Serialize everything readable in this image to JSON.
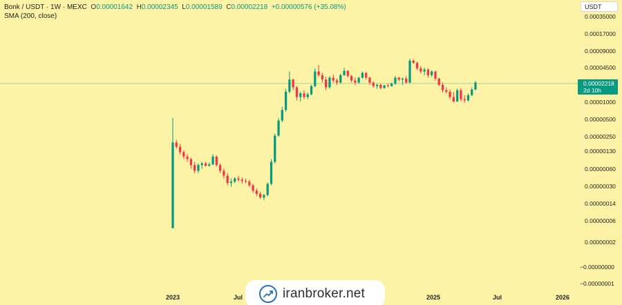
{
  "header": {
    "symbol": "Bonk / USDT · 1W · MEXC",
    "open_key": "O",
    "open_val": "0.00001642",
    "high_key": "H",
    "high_val": "0.00002345",
    "low_key": "L",
    "low_val": "0.00001589",
    "close_key": "C",
    "close_val": "0.00002218",
    "change": "+0.00000576 (+35.08%)",
    "indicator": "SMA (200, close)"
  },
  "currency": "USDT",
  "price_tag": {
    "price": "0.00002218",
    "countdown": "2d 10h"
  },
  "watermark": {
    "text": "iranbroker.net",
    "icon": "trend-chart-icon"
  },
  "colors": {
    "background": "#fdf3a6",
    "up": "#089981",
    "down": "#f23645",
    "price_line": "#089981"
  },
  "chart_data": {
    "type": "candlestick",
    "title": "Bonk / USDT · 1W · MEXC",
    "y_scale": "log",
    "y_ticks": [
      "0.00035000",
      "0.00017000",
      "0.00009000",
      "0.00004500",
      "0.00001000",
      "0.00000500",
      "0.00000250",
      "0.00000130",
      "0.00000060",
      "0.00000030",
      "0.00000014",
      "0.00000006",
      "0.00000002",
      "−0.00000000",
      "−0.00000001"
    ],
    "x_ticks": [
      "2023",
      "Jul",
      "2025",
      "Jul",
      "2026"
    ],
    "last_price": 2.218e-05,
    "candles": [
      {
        "o": 5e-08,
        "h": 5e-06,
        "l": 5e-08,
        "c": 1.8e-06
      },
      {
        "o": 1.8e-06,
        "h": 2e-06,
        "l": 1.4e-06,
        "c": 1.5e-06
      },
      {
        "o": 1.5e-06,
        "h": 1.7e-06,
        "l": 1.1e-06,
        "c": 1.2e-06
      },
      {
        "o": 1.2e-06,
        "h": 1.3e-06,
        "l": 9e-07,
        "c": 1e-06
      },
      {
        "o": 1e-06,
        "h": 1.1e-06,
        "l": 8e-07,
        "c": 9e-07
      },
      {
        "o": 9e-07,
        "h": 9.5e-07,
        "l": 6e-07,
        "c": 7e-07
      },
      {
        "o": 7e-07,
        "h": 8e-07,
        "l": 5e-07,
        "c": 5.5e-07
      },
      {
        "o": 5.5e-07,
        "h": 7.5e-07,
        "l": 5e-07,
        "c": 7e-07
      },
      {
        "o": 7e-07,
        "h": 8e-07,
        "l": 6e-07,
        "c": 7.5e-07
      },
      {
        "o": 7.5e-07,
        "h": 8e-07,
        "l": 6.5e-07,
        "c": 6.8e-07
      },
      {
        "o": 6.8e-07,
        "h": 7.8e-07,
        "l": 6.5e-07,
        "c": 7.2e-07
      },
      {
        "o": 7.2e-07,
        "h": 1.1e-06,
        "l": 7e-07,
        "c": 1e-06
      },
      {
        "o": 1e-06,
        "h": 1.05e-06,
        "l": 6.5e-07,
        "c": 7e-07
      },
      {
        "o": 7e-07,
        "h": 7.5e-07,
        "l": 5e-07,
        "c": 5.5e-07
      },
      {
        "o": 5.5e-07,
        "h": 6e-07,
        "l": 4e-07,
        "c": 4.5e-07
      },
      {
        "o": 4.5e-07,
        "h": 5e-07,
        "l": 3e-07,
        "c": 3.3e-07
      },
      {
        "o": 3.3e-07,
        "h": 4e-07,
        "l": 2.8e-07,
        "c": 3.5e-07
      },
      {
        "o": 3.5e-07,
        "h": 4.2e-07,
        "l": 3.3e-07,
        "c": 4e-07
      },
      {
        "o": 4e-07,
        "h": 4.5e-07,
        "l": 3.5e-07,
        "c": 3.8e-07
      },
      {
        "o": 3.8e-07,
        "h": 4.2e-07,
        "l": 3.2e-07,
        "c": 3.6e-07
      },
      {
        "o": 3.6e-07,
        "h": 4e-07,
        "l": 3.3e-07,
        "c": 3.5e-07
      },
      {
        "o": 3.5e-07,
        "h": 3.8e-07,
        "l": 2.8e-07,
        "c": 3e-07
      },
      {
        "o": 3e-07,
        "h": 3.2e-07,
        "l": 2.2e-07,
        "c": 2.4e-07
      },
      {
        "o": 2.4e-07,
        "h": 2.6e-07,
        "l": 1.9e-07,
        "c": 2.1e-07
      },
      {
        "o": 2.1e-07,
        "h": 2.3e-07,
        "l": 1.7e-07,
        "c": 1.8e-07
      },
      {
        "o": 1.8e-07,
        "h": 2.1e-07,
        "l": 1.6e-07,
        "c": 2e-07
      },
      {
        "o": 2e-07,
        "h": 3.4e-07,
        "l": 1.9e-07,
        "c": 3.2e-07
      },
      {
        "o": 3.2e-07,
        "h": 9e-07,
        "l": 3e-07,
        "c": 8e-07
      },
      {
        "o": 8e-07,
        "h": 2.6e-06,
        "l": 7.5e-07,
        "c": 2.4e-06
      },
      {
        "o": 2.4e-06,
        "h": 5e-06,
        "l": 2.3e-06,
        "c": 4.5e-06
      },
      {
        "o": 4.5e-06,
        "h": 8e-06,
        "l": 4.2e-06,
        "c": 7e-06
      },
      {
        "o": 7e-06,
        "h": 1.7e-05,
        "l": 6.5e-06,
        "c": 1.5e-05
      },
      {
        "o": 1.5e-05,
        "h": 3.5e-05,
        "l": 1.4e-05,
        "c": 2.5e-05
      },
      {
        "o": 2.5e-05,
        "h": 2.6e-05,
        "l": 1.6e-05,
        "c": 1.8e-05
      },
      {
        "o": 1.8e-05,
        "h": 1.9e-05,
        "l": 1.05e-05,
        "c": 1.2e-05
      },
      {
        "o": 1.2e-05,
        "h": 1.5e-05,
        "l": 1e-05,
        "c": 1.4e-05
      },
      {
        "o": 1.4e-05,
        "h": 1.6e-05,
        "l": 1.1e-05,
        "c": 1.2e-05
      },
      {
        "o": 1.2e-05,
        "h": 1.45e-05,
        "l": 1.1e-05,
        "c": 1.35e-05
      },
      {
        "o": 1.35e-05,
        "h": 2e-05,
        "l": 1.3e-05,
        "c": 1.9e-05
      },
      {
        "o": 1.9e-05,
        "h": 4e-05,
        "l": 1.8e-05,
        "c": 3.5e-05
      },
      {
        "o": 3.5e-05,
        "h": 4.6e-05,
        "l": 2.8e-05,
        "c": 3e-05
      },
      {
        "o": 3e-05,
        "h": 3.3e-05,
        "l": 2.2e-05,
        "c": 2.5e-05
      },
      {
        "o": 2.5e-05,
        "h": 2.8e-05,
        "l": 1.6e-05,
        "c": 1.8e-05
      },
      {
        "o": 1.8e-05,
        "h": 2.9e-05,
        "l": 1.7e-05,
        "c": 2.7e-05
      },
      {
        "o": 2.7e-05,
        "h": 3.1e-05,
        "l": 2.2e-05,
        "c": 2.4e-05
      },
      {
        "o": 2.4e-05,
        "h": 2.6e-05,
        "l": 2e-05,
        "c": 2.2e-05
      },
      {
        "o": 2.2e-05,
        "h": 3.2e-05,
        "l": 2.1e-05,
        "c": 3e-05
      },
      {
        "o": 3e-05,
        "h": 4.1e-05,
        "l": 2.9e-05,
        "c": 3.6e-05
      },
      {
        "o": 3.6e-05,
        "h": 3.7e-05,
        "l": 2.7e-05,
        "c": 2.9e-05
      },
      {
        "o": 2.9e-05,
        "h": 3e-05,
        "l": 2.2e-05,
        "c": 2.4e-05
      },
      {
        "o": 2.4e-05,
        "h": 2.7e-05,
        "l": 2e-05,
        "c": 2.2e-05
      },
      {
        "o": 2.2e-05,
        "h": 2.8e-05,
        "l": 2.1e-05,
        "c": 2.7e-05
      },
      {
        "o": 2.7e-05,
        "h": 3.5e-05,
        "l": 2.6e-05,
        "c": 3.3e-05
      },
      {
        "o": 3.3e-05,
        "h": 3.4e-05,
        "l": 2.5e-05,
        "c": 2.7e-05
      },
      {
        "o": 2.7e-05,
        "h": 2.8e-05,
        "l": 2e-05,
        "c": 2.2e-05
      },
      {
        "o": 2.2e-05,
        "h": 2.3e-05,
        "l": 1.8e-05,
        "c": 1.9e-05
      },
      {
        "o": 1.9e-05,
        "h": 2.1e-05,
        "l": 1.7e-05,
        "c": 2e-05
      },
      {
        "o": 2e-05,
        "h": 2.1e-05,
        "l": 1.65e-05,
        "c": 1.75e-05
      },
      {
        "o": 1.75e-05,
        "h": 2e-05,
        "l": 1.7e-05,
        "c": 1.95e-05
      },
      {
        "o": 1.95e-05,
        "h": 2.1e-05,
        "l": 1.8e-05,
        "c": 1.9e-05
      },
      {
        "o": 1.9e-05,
        "h": 2.2e-05,
        "l": 1.85e-05,
        "c": 2.1e-05
      },
      {
        "o": 2.1e-05,
        "h": 2.9e-05,
        "l": 2e-05,
        "c": 2.7e-05
      },
      {
        "o": 2.7e-05,
        "h": 2.8e-05,
        "l": 2.3e-05,
        "c": 2.5e-05
      },
      {
        "o": 2.5e-05,
        "h": 2.7e-05,
        "l": 2e-05,
        "c": 2.6e-05
      },
      {
        "o": 2.6e-05,
        "h": 2.9e-05,
        "l": 2.1e-05,
        "c": 2.2e-05
      },
      {
        "o": 2.2e-05,
        "h": 6e-05,
        "l": 2.15e-05,
        "c": 5.5e-05
      },
      {
        "o": 5.5e-05,
        "h": 5.8e-05,
        "l": 4.8e-05,
        "c": 5e-05
      },
      {
        "o": 5e-05,
        "h": 5.3e-05,
        "l": 3.7e-05,
        "c": 4e-05
      },
      {
        "o": 4e-05,
        "h": 4.4e-05,
        "l": 3.2e-05,
        "c": 3.5e-05
      },
      {
        "o": 3.5e-05,
        "h": 4.1e-05,
        "l": 3e-05,
        "c": 3.8e-05
      },
      {
        "o": 3.8e-05,
        "h": 4e-05,
        "l": 2.7e-05,
        "c": 3e-05
      },
      {
        "o": 3e-05,
        "h": 3.7e-05,
        "l": 2.8e-05,
        "c": 3.5e-05
      },
      {
        "o": 3.5e-05,
        "h": 3.6e-05,
        "l": 2.4e-05,
        "c": 2.6e-05
      },
      {
        "o": 2.6e-05,
        "h": 2.7e-05,
        "l": 1.9e-05,
        "c": 2e-05
      },
      {
        "o": 2e-05,
        "h": 2.2e-05,
        "l": 1.45e-05,
        "c": 1.6e-05
      },
      {
        "o": 1.6e-05,
        "h": 1.8e-05,
        "l": 1.4e-05,
        "c": 1.5e-05
      },
      {
        "o": 1.5e-05,
        "h": 1.65e-05,
        "l": 1.1e-05,
        "c": 1.2e-05
      },
      {
        "o": 1.2e-05,
        "h": 1.5e-05,
        "l": 9.5e-06,
        "c": 1e-05
      },
      {
        "o": 1e-05,
        "h": 1.7e-05,
        "l": 9.8e-06,
        "c": 1.6e-05
      },
      {
        "o": 1.6e-05,
        "h": 1.75e-05,
        "l": 1e-05,
        "c": 1.1e-05
      },
      {
        "o": 1.1e-05,
        "h": 1.3e-05,
        "l": 9.5e-06,
        "c": 1.05e-05
      },
      {
        "o": 1.05e-05,
        "h": 1.4e-05,
        "l": 1e-05,
        "c": 1.3e-05
      },
      {
        "o": 1.3e-05,
        "h": 1.8e-05,
        "l": 1.25e-05,
        "c": 1.642e-05
      },
      {
        "o": 1.642e-05,
        "h": 2.345e-05,
        "l": 1.589e-05,
        "c": 2.218e-05
      }
    ]
  }
}
